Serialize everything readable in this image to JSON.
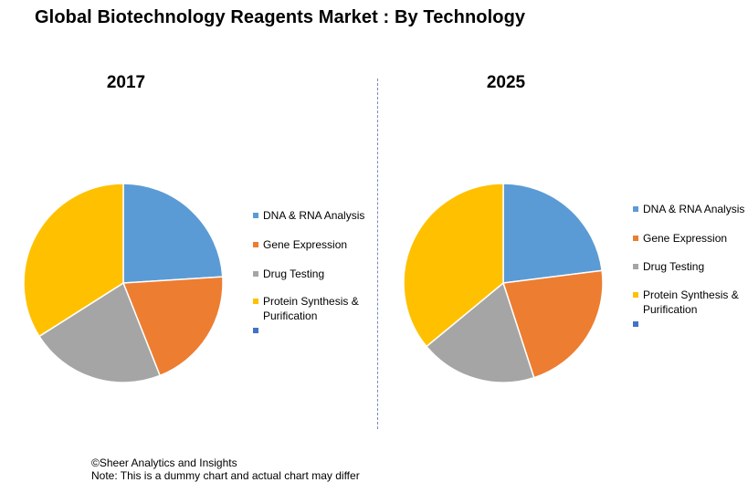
{
  "title": "Global Biotechnology Reagents Market : By Technology",
  "footer": {
    "copyright": "©Sheer Analytics and Insights",
    "note": "Note: This is a dummy chart and actual chart may differ"
  },
  "colors": {
    "dna_rna": "#5b9bd5",
    "gene_expression": "#ed7d31",
    "drug_testing": "#a5a5a5",
    "protein_synthesis": "#ffc000",
    "unlabeled": "#4472c4",
    "divider": "#6f8fb8"
  },
  "chart_data": [
    {
      "type": "pie",
      "title": "2017",
      "categories": [
        "DNA & RNA Analysis",
        "Gene Expression",
        "Drug Testing",
        "Protein Synthesis & Purification"
      ],
      "values": [
        24,
        20,
        22,
        34
      ],
      "legend": {
        "placement": "right",
        "entries": [
          "DNA & RNA Analysis",
          "Gene Expression",
          "Drug Testing",
          "Protein Synthesis & Purification",
          ""
        ]
      }
    },
    {
      "type": "pie",
      "title": "2025",
      "categories": [
        "DNA & RNA Analysis",
        "Gene Expression",
        "Drug Testing",
        "Protein Synthesis & Purification"
      ],
      "values": [
        23,
        22,
        19,
        36
      ],
      "legend": {
        "placement": "right",
        "entries": [
          "DNA & RNA Analysis",
          "Gene Expression",
          "Drug Testing",
          "Protein Synthesis & Purification",
          ""
        ]
      }
    }
  ]
}
